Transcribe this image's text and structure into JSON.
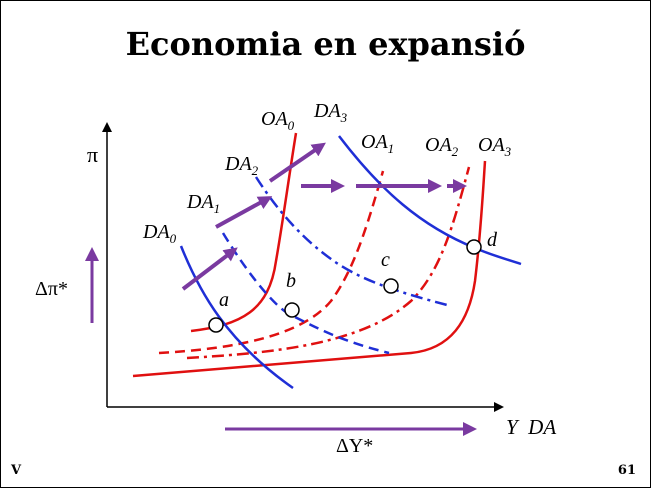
{
  "title": "Economia en expansió",
  "footer": {
    "left": "V",
    "page_number": "61"
  },
  "axes": {
    "y_label": "π",
    "x_label": "Y  DA"
  },
  "deltas": {
    "inflation": "Δπ*",
    "output": "ΔY*"
  },
  "curve_labels": {
    "DA0": {
      "base": "DA",
      "sub": "0"
    },
    "DA1": {
      "base": "DA",
      "sub": "1"
    },
    "DA2": {
      "base": "DA",
      "sub": "2"
    },
    "DA3": {
      "base": "DA",
      "sub": "3"
    },
    "OA0": {
      "base": "OA",
      "sub": "0"
    },
    "OA1": {
      "base": "OA",
      "sub": "1"
    },
    "OA2": {
      "base": "OA",
      "sub": "2"
    },
    "OA3": {
      "base": "OA",
      "sub": "3"
    }
  },
  "points": {
    "a": "a",
    "b": "b",
    "c": "c",
    "d": "d"
  },
  "colors": {
    "demand": "#1f2fd6",
    "supply": "#e01010",
    "shift_arrow": "#7a3aa0",
    "axis": "#000000"
  }
}
